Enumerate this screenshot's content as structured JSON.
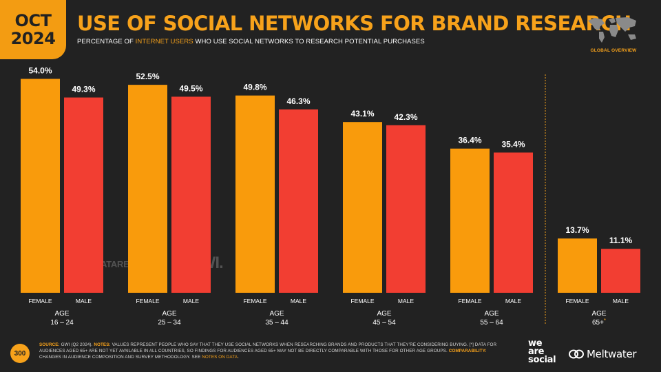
{
  "date_badge": {
    "month": "OCT",
    "year": "2024"
  },
  "title": "USE OF SOCIAL NETWORKS FOR BRAND RESEARCH",
  "subtitle": {
    "pre": "PERCENTAGE OF ",
    "highlight": "INTERNET USERS",
    "post": " WHO USE SOCIAL NETWORKS TO RESEARCH POTENTIAL PURCHASES"
  },
  "region_label": "GLOBAL OVERVIEW",
  "watermarks": {
    "datareportal": "DATAREPORTAL",
    "gwi": "GWI."
  },
  "colors": {
    "background": "#222222",
    "accent": "#f7a21b",
    "female": "#f99b0c",
    "male": "#f23e32"
  },
  "chart_data": {
    "type": "bar",
    "unit": "%",
    "ylim": [
      0,
      60
    ],
    "grid": false,
    "series_labels": [
      "FEMALE",
      "MALE"
    ],
    "groups": [
      {
        "age_label": "AGE",
        "range": "16 – 24",
        "female": 54.0,
        "male": 49.3,
        "female_label": "54.0%",
        "male_label": "49.3%"
      },
      {
        "age_label": "AGE",
        "range": "25 – 34",
        "female": 52.5,
        "male": 49.5,
        "female_label": "52.5%",
        "male_label": "49.5%"
      },
      {
        "age_label": "AGE",
        "range": "35 – 44",
        "female": 49.8,
        "male": 46.3,
        "female_label": "49.8%",
        "male_label": "46.3%"
      },
      {
        "age_label": "AGE",
        "range": "45 – 54",
        "female": 43.1,
        "male": 42.3,
        "female_label": "43.1%",
        "male_label": "42.3%"
      },
      {
        "age_label": "AGE",
        "range": "55 – 64",
        "female": 36.4,
        "male": 35.4,
        "female_label": "36.4%",
        "male_label": "35.4%"
      },
      {
        "age_label": "AGE",
        "range": "65+",
        "marker": "*",
        "female": 13.7,
        "male": 11.1,
        "female_label": "13.7%",
        "male_label": "11.1%"
      }
    ]
  },
  "footer": {
    "page_number": "300",
    "source_label": "SOURCE:",
    "source_text": "GWI (Q2 2024).",
    "notes_label": "NOTES:",
    "notes_text": "VALUES REPRESENT PEOPLE WHO SAY THAT THEY USE SOCIAL NETWORKS WHEN RESEARCHING BRANDS AND PRODUCTS THAT THEY’RE CONSIDERING BUYING. [*] DATA FOR AUDIENCES AGED 65+ ARE NOT YET AVAILABLE IN ALL COUNTRIES, SO FINDINGS FOR AUDIENCES AGED 65+ MAY NOT BE DIRECTLY COMPARABLE WITH THOSE FOR OTHER AGE GROUPS.",
    "comparability_label": "COMPARABILITY:",
    "comparability_text": "CHANGES IN AUDIENCE COMPOSITION AND SURVEY METHODOLOGY. SEE ",
    "notes_link": "NOTES ON DATA",
    "end": ".",
    "brand_was": [
      "we",
      "are",
      "social"
    ],
    "brand_meltwater": "Meltwater",
    "map_icon": "world-map-icon",
    "meltwater_icon": "meltwater-logo-icon"
  }
}
